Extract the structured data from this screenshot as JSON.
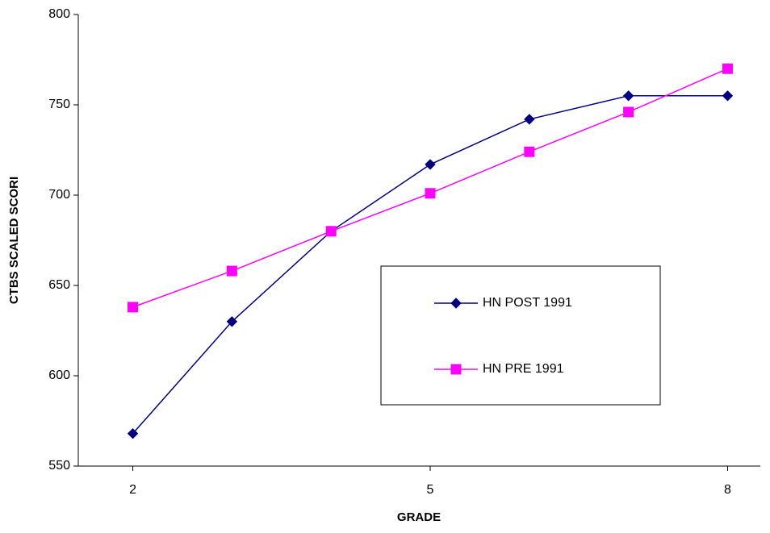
{
  "chart_data": {
    "type": "line",
    "x_label": "GRADE",
    "y_label": "CTBS SCALED SCORI",
    "x": [
      2,
      3,
      4,
      5,
      6,
      7,
      8
    ],
    "series": [
      {
        "name": "HN POST 1991",
        "color": "#000080",
        "marker": "diamond",
        "values": [
          568,
          630,
          680,
          717,
          742,
          755,
          755
        ]
      },
      {
        "name": "HN PRE 1991",
        "color": "#ff00ff",
        "marker": "square",
        "values": [
          638,
          658,
          680,
          701,
          724,
          746,
          770
        ]
      }
    ],
    "xlim": [
      1.45,
      8.33
    ],
    "xticks": [
      2,
      5,
      8
    ],
    "ylim": [
      550,
      800
    ],
    "yticks": [
      550,
      600,
      650,
      700,
      750,
      800
    ],
    "grid": false,
    "legend": "center"
  }
}
